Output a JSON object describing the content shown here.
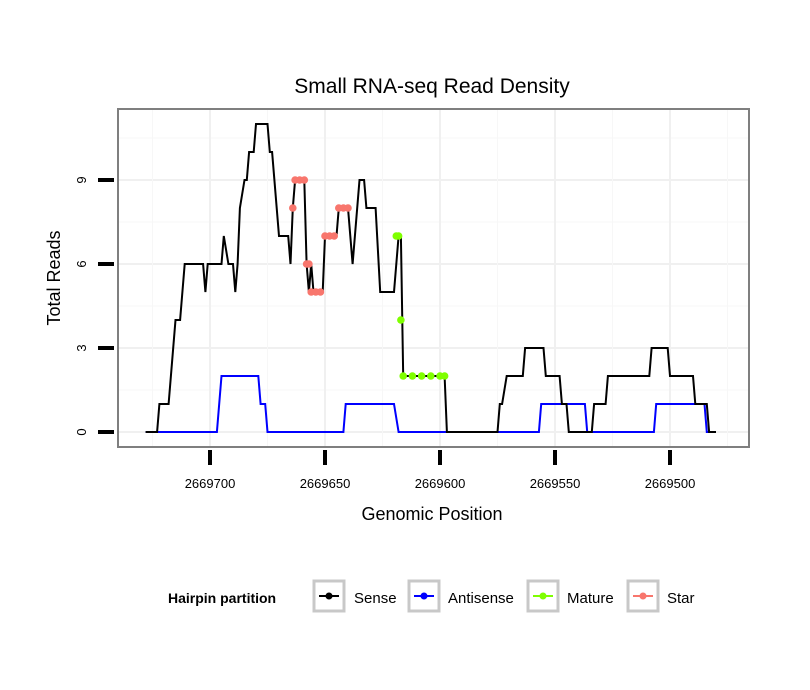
{
  "chart_data": {
    "type": "line",
    "title": "Small RNA-seq Read Density",
    "xlabel": "Genomic Position",
    "ylabel": "Total Reads",
    "xlim": [
      2669728,
      2669455
    ],
    "x_reversed": true,
    "ylim": [
      -0.6,
      11.6
    ],
    "x_ticks": [
      2669700,
      2669650,
      2669600,
      2669550,
      2669500
    ],
    "x_tick_labels": [
      "2669700",
      "2669650",
      "2669600",
      "2669550",
      "2669500"
    ],
    "y_ticks": [
      0,
      3,
      6,
      9
    ],
    "y_tick_labels": [
      "0",
      "3",
      "6",
      "9"
    ],
    "grid": true,
    "legend": {
      "title": "Hairpin partition",
      "placement": "bottom",
      "entries": [
        {
          "label": "Sense",
          "color": "#000000"
        },
        {
          "label": "Antisense",
          "color": "#0000ff"
        },
        {
          "label": "Mature",
          "color": "#7fff00"
        },
        {
          "label": "Star",
          "color": "#f8766d"
        }
      ]
    },
    "series": [
      {
        "name": "Sense",
        "color": "#000000",
        "points": [
          [
            2669728,
            0
          ],
          [
            2669723,
            0
          ],
          [
            2669722,
            1
          ],
          [
            2669718,
            1
          ],
          [
            2669715,
            4
          ],
          [
            2669713,
            4
          ],
          [
            2669711,
            6
          ],
          [
            2669703,
            6
          ],
          [
            2669702,
            5
          ],
          [
            2669701,
            6
          ],
          [
            2669695,
            6
          ],
          [
            2669694,
            7
          ],
          [
            2669692,
            6
          ],
          [
            2669690,
            6
          ],
          [
            2669689,
            5
          ],
          [
            2669688,
            6
          ],
          [
            2669687,
            8
          ],
          [
            2669685,
            9
          ],
          [
            2669684,
            9
          ],
          [
            2669683,
            10
          ],
          [
            2669681,
            10
          ],
          [
            2669680,
            11
          ],
          [
            2669675,
            11
          ],
          [
            2669674,
            10
          ],
          [
            2669673,
            10
          ],
          [
            2669672,
            9
          ],
          [
            2669670,
            7
          ],
          [
            2669666,
            7
          ],
          [
            2669665,
            6
          ],
          [
            2669664,
            8
          ],
          [
            2669663,
            9
          ],
          [
            2669659,
            9
          ],
          [
            2669658,
            6
          ],
          [
            2669657,
            5
          ],
          [
            2669656,
            6
          ],
          [
            2669655,
            5
          ],
          [
            2669651,
            5
          ],
          [
            2669650,
            7
          ],
          [
            2669645,
            7
          ],
          [
            2669644,
            8
          ],
          [
            2669640,
            8
          ],
          [
            2669638,
            6
          ],
          [
            2669637,
            7
          ],
          [
            2669635,
            9
          ],
          [
            2669633,
            9
          ],
          [
            2669632,
            8
          ],
          [
            2669628,
            8
          ],
          [
            2669626,
            5
          ],
          [
            2669620,
            5
          ],
          [
            2669618,
            7
          ],
          [
            2669617,
            7
          ],
          [
            2669616,
            2
          ],
          [
            2669598,
            2
          ],
          [
            2669597,
            0
          ],
          [
            2669575,
            0
          ],
          [
            2669574,
            1
          ],
          [
            2669573,
            1
          ],
          [
            2669571,
            2
          ],
          [
            2669564,
            2
          ],
          [
            2669563,
            3
          ],
          [
            2669555,
            3
          ],
          [
            2669554,
            2
          ],
          [
            2669548,
            2
          ],
          [
            2669547,
            1
          ],
          [
            2669545,
            1
          ],
          [
            2669544,
            0
          ],
          [
            2669534,
            0
          ],
          [
            2669533,
            1
          ],
          [
            2669528,
            1
          ],
          [
            2669527,
            2
          ],
          [
            2669509,
            2
          ],
          [
            2669508,
            3
          ],
          [
            2669501,
            3
          ],
          [
            2669500,
            2
          ],
          [
            2669490,
            2
          ],
          [
            2669489,
            1
          ],
          [
            2669484,
            1
          ],
          [
            2669483,
            0
          ],
          [
            2669480,
            0
          ]
        ]
      },
      {
        "name": "Antisense",
        "color": "#0000ff",
        "points": [
          [
            2669728,
            0
          ],
          [
            2669697,
            0
          ],
          [
            2669695,
            2
          ],
          [
            2669679,
            2
          ],
          [
            2669678,
            1
          ],
          [
            2669676,
            1
          ],
          [
            2669675,
            0
          ],
          [
            2669642,
            0
          ],
          [
            2669641,
            1
          ],
          [
            2669620,
            1
          ],
          [
            2669618,
            0
          ],
          [
            2669557,
            0
          ],
          [
            2669556,
            1
          ],
          [
            2669537,
            1
          ],
          [
            2669536,
            0
          ],
          [
            2669507,
            0
          ],
          [
            2669506,
            1
          ],
          [
            2669485,
            1
          ],
          [
            2669484,
            0
          ],
          [
            2669480,
            0
          ]
        ]
      },
      {
        "name": "Mature",
        "color": "#7fff00",
        "points": [
          [
            2669619,
            7
          ],
          [
            2669618,
            7
          ],
          [
            2669617,
            4
          ],
          [
            2669616,
            2
          ],
          [
            2669612,
            2
          ],
          [
            2669608,
            2
          ],
          [
            2669604,
            2
          ],
          [
            2669600,
            2
          ],
          [
            2669598,
            2
          ]
        ]
      },
      {
        "name": "Star",
        "color": "#f8766d",
        "points": [
          [
            2669664,
            8
          ],
          [
            2669663,
            9
          ],
          [
            2669661,
            9
          ],
          [
            2669659,
            9
          ],
          [
            2669658,
            6
          ],
          [
            2669657,
            6
          ],
          [
            2669656,
            5
          ],
          [
            2669654,
            5
          ],
          [
            2669652,
            5
          ],
          [
            2669650,
            7
          ],
          [
            2669648,
            7
          ],
          [
            2669646,
            7
          ],
          [
            2669644,
            8
          ],
          [
            2669642,
            8
          ],
          [
            2669640,
            8
          ]
        ]
      }
    ]
  }
}
